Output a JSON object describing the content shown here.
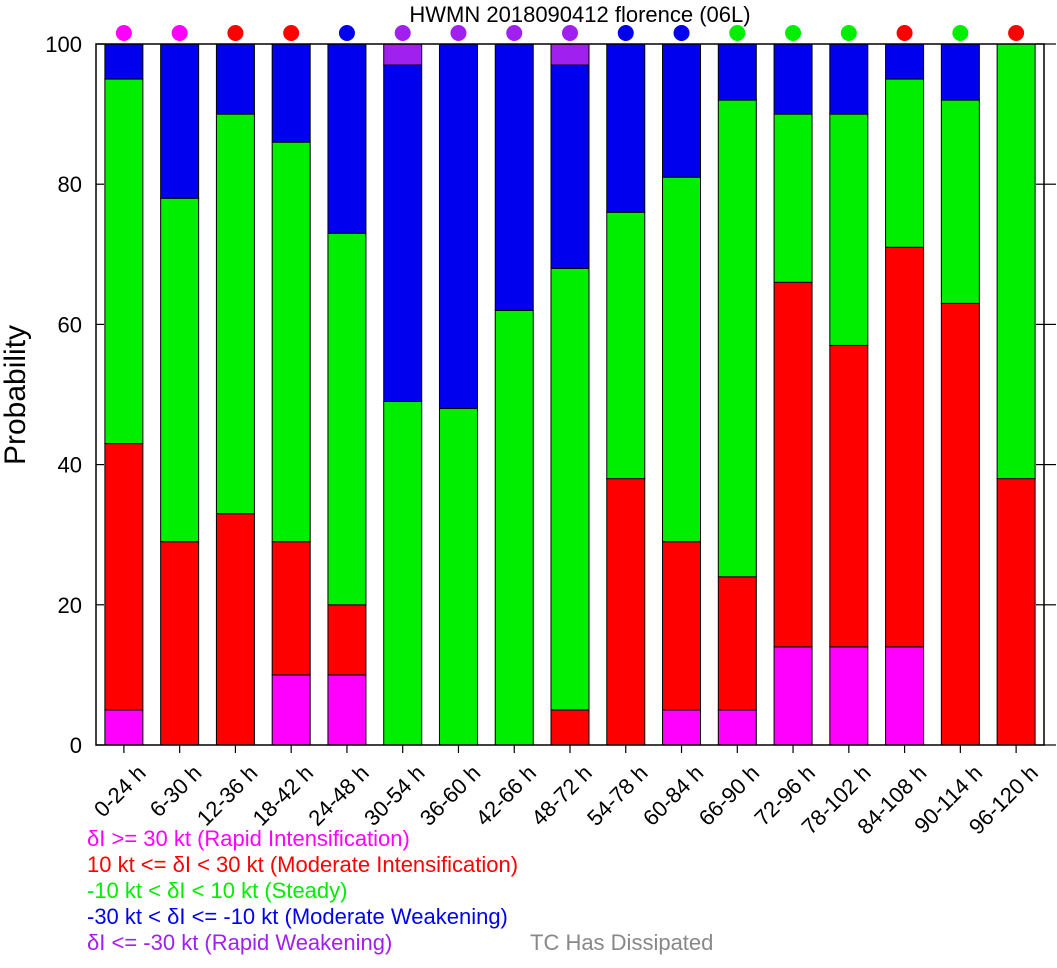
{
  "chart_data": {
    "type": "bar",
    "stacked": true,
    "title": "HWMN 2018090412 florence (06L)",
    "xlabel": "",
    "ylabel": "Probability",
    "ylim": [
      0,
      100
    ],
    "yticks": [
      "0",
      "20",
      "40",
      "60",
      "80",
      "100"
    ],
    "grid": false,
    "categories": [
      "0-24 h",
      "6-30 h",
      "12-36 h",
      "18-42 h",
      "24-48 h",
      "30-54 h",
      "36-60 h",
      "42-66 h",
      "48-72 h",
      "54-78 h",
      "60-84 h",
      "66-90 h",
      "72-96 h",
      "78-102 h",
      "84-108 h",
      "90-114 h",
      "96-120 h"
    ],
    "series": [
      {
        "key": "ri",
        "color": "#ff00ff",
        "values": [
          5,
          0,
          0,
          10,
          10,
          0,
          0,
          0,
          0,
          0,
          5,
          5,
          14,
          14,
          14,
          0,
          0
        ]
      },
      {
        "key": "mi",
        "color": "#ff0000",
        "values": [
          38,
          29,
          33,
          19,
          10,
          0,
          0,
          0,
          5,
          38,
          24,
          19,
          52,
          43,
          57,
          63,
          38
        ]
      },
      {
        "key": "st",
        "color": "#00ee00",
        "values": [
          52,
          49,
          57,
          57,
          53,
          49,
          48,
          62,
          63,
          38,
          52,
          68,
          24,
          33,
          24,
          29,
          62
        ]
      },
      {
        "key": "mw",
        "color": "#0000ee",
        "values": [
          5,
          22,
          10,
          14,
          27,
          48,
          52,
          38,
          29,
          24,
          19,
          8,
          10,
          10,
          5,
          8,
          0
        ]
      },
      {
        "key": "rw",
        "color": "#a020f0",
        "values": [
          0,
          0,
          0,
          0,
          0,
          3,
          0,
          0,
          3,
          0,
          0,
          0,
          0,
          0,
          0,
          0,
          0
        ]
      }
    ],
    "top_markers": [
      "#ff00ff",
      "#ff00ff",
      "#ff0000",
      "#ff0000",
      "#0000ee",
      "#a020f0",
      "#a020f0",
      "#a020f0",
      "#a020f0",
      "#0000ee",
      "#0000ee",
      "#00ee00",
      "#00ee00",
      "#00ee00",
      "#ff0000",
      "#00ee00",
      "#ff0000"
    ],
    "legend": [
      {
        "text": "δI >= 30 kt (Rapid Intensification)",
        "color": "#ff00ff"
      },
      {
        "text": "10 kt <= δI < 30 kt (Moderate Intensification)",
        "color": "#ff0000"
      },
      {
        "text": "-10 kt < δI < 10 kt (Steady)",
        "color": "#00ee00"
      },
      {
        "text": "-30 kt < δI <= -10 kt (Moderate Weakening)",
        "color": "#0000ee"
      },
      {
        "text": "δI <= -30 kt (Rapid Weakening)",
        "color": "#a020f0"
      }
    ],
    "legend_position": "bottom-left",
    "dissipated": {
      "text": "TC Has Dissipated",
      "color": "#888888"
    }
  }
}
